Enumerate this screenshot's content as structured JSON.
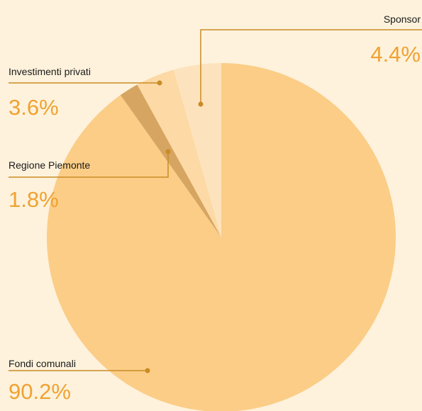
{
  "chart_data": {
    "type": "pie",
    "categories": [
      "Fondi comunali",
      "Regione Piemonte",
      "Investimenti privati",
      "Sponsor"
    ],
    "values": [
      90.2,
      1.8,
      3.6,
      4.4
    ],
    "value_labels": [
      "90.2%",
      "1.8%",
      "3.6%",
      "4.4%"
    ],
    "colors": [
      "#fbcd87",
      "#d6a561",
      "#fcd9a5",
      "#fde3bd"
    ]
  }
}
